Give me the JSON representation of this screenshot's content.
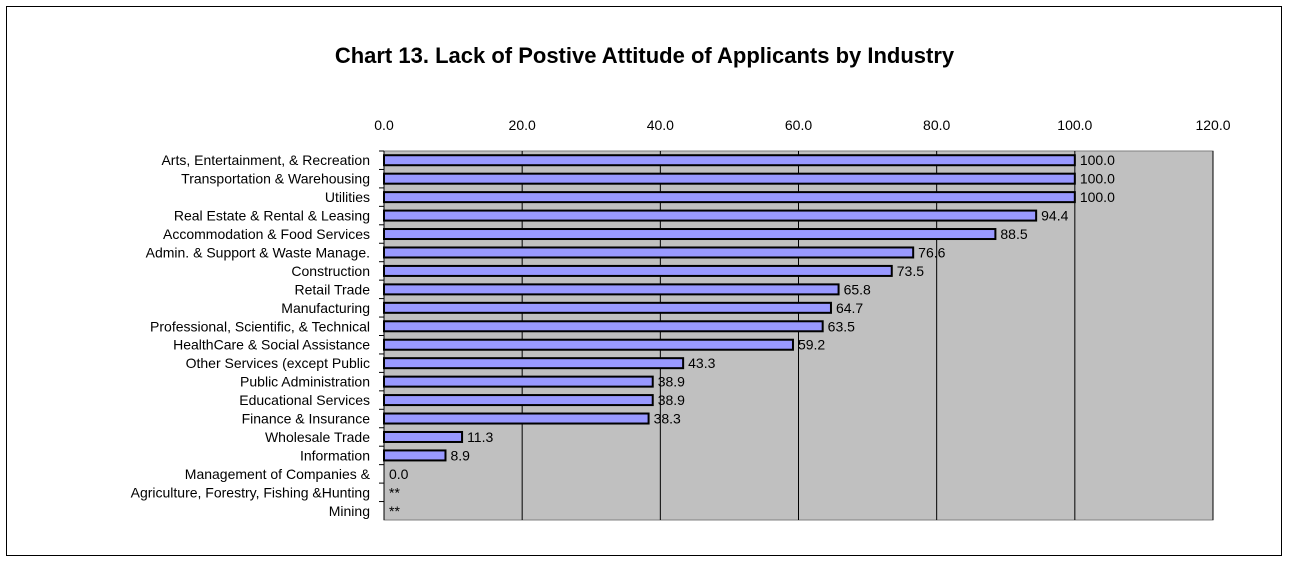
{
  "chart_data": {
    "type": "bar",
    "orientation": "horizontal",
    "title": "Chart 13. Lack of Postive Attitude of Applicants by Industry",
    "xlabel": "",
    "ylabel": "",
    "xlim": [
      0,
      120
    ],
    "x_ticks": [
      "0.0",
      "20.0",
      "40.0",
      "60.0",
      "80.0",
      "100.0",
      "120.0"
    ],
    "x_axis_position": "top",
    "grid": "vertical",
    "legend": "none",
    "colors": {
      "plot_background": "#c0c0c0",
      "bar_fill": "#9999ff",
      "bar_stroke": "#000000",
      "gridline": "#000000"
    },
    "categories": [
      "Arts, Entertainment, & Recreation",
      "Transportation & Warehousing",
      "Utilities",
      "Real Estate & Rental & Leasing",
      "Accommodation & Food Services",
      "Admin. & Support & Waste Manage.",
      "Construction",
      "Retail Trade",
      "Manufacturing",
      "Professional, Scientific, & Technical",
      "HealthCare & Social Assistance",
      "Other Services (except Public",
      "Public Administration",
      "Educational Services",
      "Finance & Insurance",
      "Wholesale Trade",
      "Information",
      "Management of Companies &",
      "Agriculture, Forestry, Fishing &Hunting",
      "Mining"
    ],
    "values": [
      100.0,
      100.0,
      100.0,
      94.4,
      88.5,
      76.6,
      73.5,
      65.8,
      64.7,
      63.5,
      59.2,
      43.3,
      38.9,
      38.9,
      38.3,
      11.3,
      8.9,
      0.0,
      null,
      null
    ],
    "data_labels": [
      "100.0",
      "100.0",
      "100.0",
      "94.4",
      "88.5",
      "76.6",
      "73.5",
      "65.8",
      "64.7",
      "63.5",
      "59.2",
      "43.3",
      "38.9",
      "38.9",
      "38.3",
      "11.3",
      "8.9",
      "0.0",
      "**",
      "**"
    ]
  }
}
